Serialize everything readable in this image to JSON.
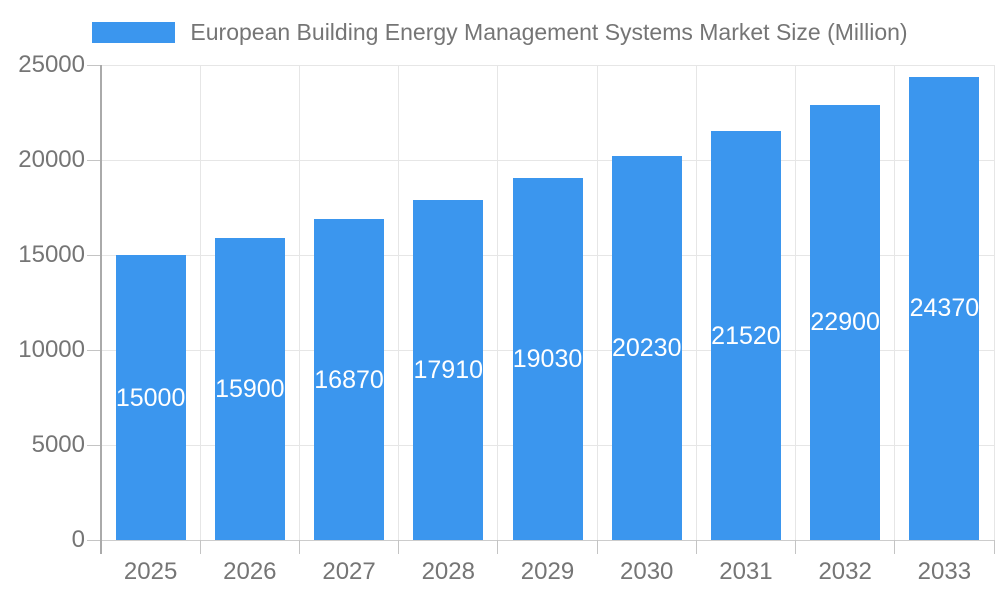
{
  "chart_data": {
    "type": "bar",
    "title": "European Building Energy Management Systems Market Size (Million)",
    "categories": [
      "2025",
      "2026",
      "2027",
      "2028",
      "2029",
      "2030",
      "2031",
      "2032",
      "2033"
    ],
    "values": [
      15000,
      15900,
      16870,
      17910,
      19030,
      20230,
      21520,
      22900,
      24370
    ],
    "series": [
      {
        "name": "European Building Energy Management Systems Market Size (Million)",
        "values": [
          15000,
          15900,
          16870,
          17910,
          19030,
          20230,
          21520,
          22900,
          24370
        ]
      }
    ],
    "xlabel": "",
    "ylabel": "",
    "ylim": [
      0,
      25000
    ],
    "ytick_interval": 5000,
    "yticks": [
      0,
      5000,
      10000,
      15000,
      20000,
      25000
    ],
    "grid": true,
    "legend_position": "top-center",
    "value_labels": "inside-center"
  },
  "theme": {
    "bar_color": "#3B96EE",
    "value_label_color": "#ffffff",
    "title_color": "#757575",
    "axis_label_color": "#757575",
    "gridline_color": "#e6e6e6",
    "baseline_color": "#cccccc",
    "axis_line_color": "#aaaaaa",
    "tick_color": "#c4c4c4",
    "background_color": "#ffffff"
  }
}
